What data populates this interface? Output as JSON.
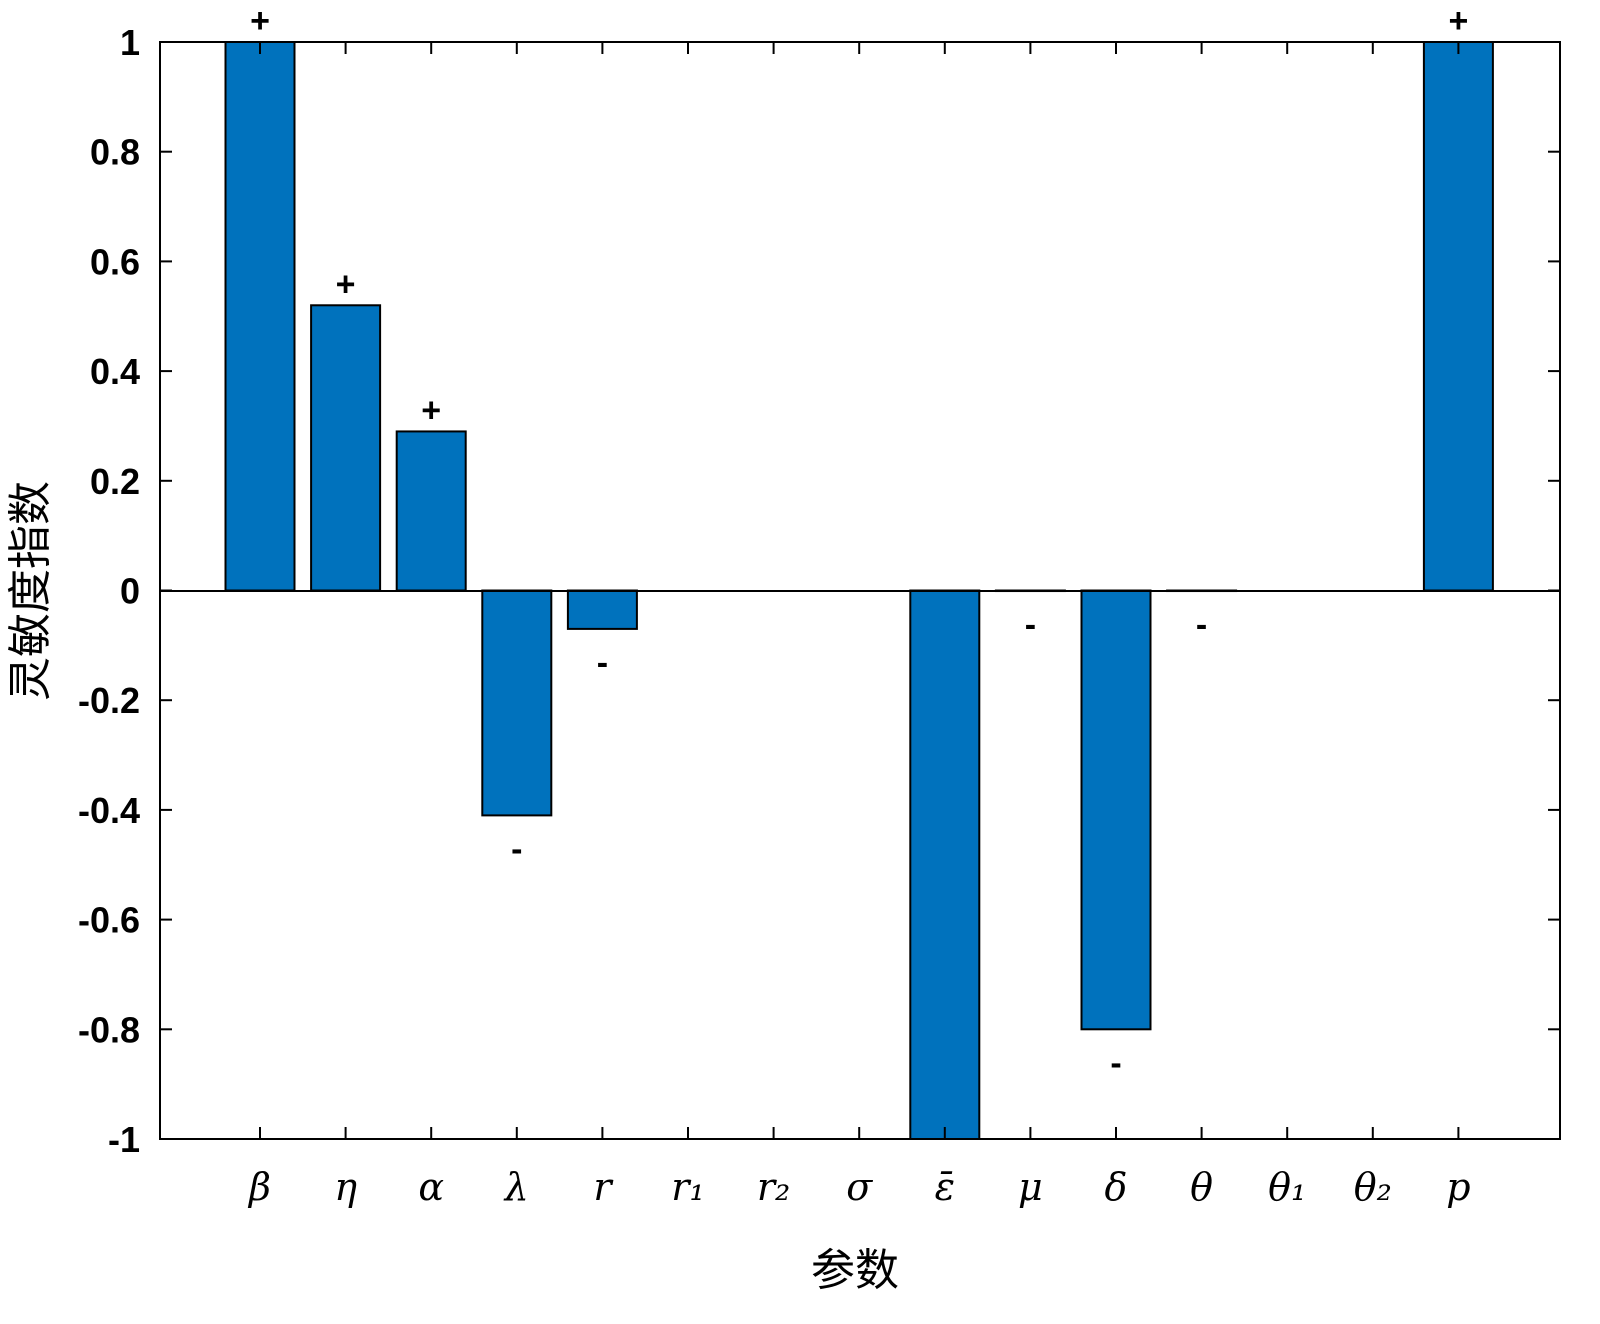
{
  "chart_data": {
    "type": "bar",
    "title": "",
    "xlabel": "参数",
    "ylabel": "灵敏度指数",
    "categories": [
      "β",
      "η",
      "α",
      "λ",
      "r",
      "r₁",
      "r₂",
      "σ",
      "ε̄",
      "μ",
      "δ",
      "θ",
      "θ₁",
      "θ₂",
      "p"
    ],
    "values": [
      1,
      0.52,
      0.29,
      -0.41,
      -0.07,
      0,
      0,
      0,
      -1,
      -0.001,
      -0.8,
      -0.001,
      0,
      0,
      1
    ],
    "signs": [
      "+",
      "+",
      "+",
      "-",
      "-",
      "",
      "",
      "",
      "",
      "-",
      "-",
      "-",
      "",
      "",
      "+"
    ],
    "ylim": [
      -1,
      1
    ],
    "yticks": [
      "1",
      "0.8",
      "0.6",
      "0.4",
      "0.2",
      "0",
      "-0.2",
      "-0.4",
      "-0.6",
      "-0.8",
      "-1"
    ],
    "grid": false,
    "bar_color": "#0072BD"
  }
}
